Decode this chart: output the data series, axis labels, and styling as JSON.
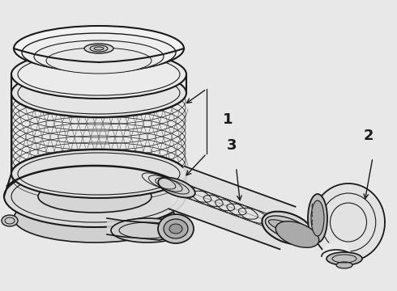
{
  "bg_color": "#e8e8e8",
  "line_color": "#1a1a1a",
  "fig_width": 4.9,
  "fig_height": 3.6,
  "dpi": 100,
  "label1": "1",
  "label2": "2",
  "label3": "3"
}
